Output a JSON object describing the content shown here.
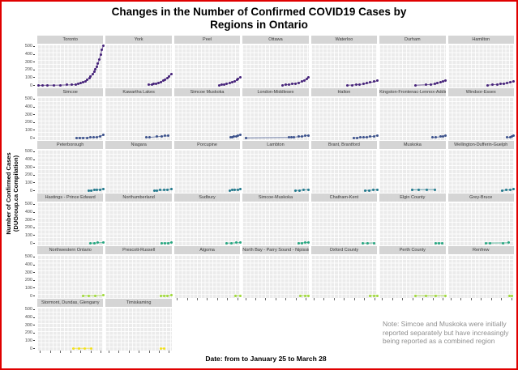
{
  "title": {
    "line1": "Changes in the Number of Confirmed COVID19 Cases by",
    "line2": "Regions in Ontario"
  },
  "y_axis": {
    "label_line1": "Number of Confirmed Cases",
    "label_line2": "(DUGroup.ca Compilation)",
    "ticks": [
      500,
      400,
      300,
      200,
      100,
      0
    ]
  },
  "x_axis": {
    "label": "Date: from to January 25 to March 28"
  },
  "note": {
    "text": "Note: Simcoe and Muskoka were initially reported separately but have increasingly being reported as a combined region",
    "color": "#8f8f8f"
  },
  "frame": {
    "border_color": "#e00000"
  },
  "chart_data": {
    "type": "scatter",
    "subtype": "faceted small multiples with connecting lines",
    "facet_layout": {
      "columns": 7,
      "rows": 6,
      "panel_count": 37
    },
    "ylim": [
      -25,
      525
    ],
    "y_major_ticks": [
      0,
      100,
      200,
      300,
      400,
      500
    ],
    "x_range": [
      "January 25",
      "March 28"
    ],
    "grid": "on",
    "row_colors": [
      "#46237a",
      "#3b518b",
      "#21788c",
      "#27a781",
      "#a0da39",
      "#f2e11c"
    ],
    "panels": [
      {
        "region": "Toronto",
        "points": [
          [
            0.02,
            1
          ],
          [
            0.08,
            2
          ],
          [
            0.15,
            3
          ],
          [
            0.25,
            4
          ],
          [
            0.35,
            5
          ],
          [
            0.45,
            7
          ],
          [
            0.52,
            9
          ],
          [
            0.58,
            14
          ],
          [
            0.62,
            20
          ],
          [
            0.66,
            28
          ],
          [
            0.7,
            38
          ],
          [
            0.73,
            55
          ],
          [
            0.76,
            70
          ],
          [
            0.79,
            95
          ],
          [
            0.81,
            115
          ],
          [
            0.84,
            145
          ],
          [
            0.86,
            175
          ],
          [
            0.88,
            205
          ],
          [
            0.9,
            240
          ],
          [
            0.92,
            285
          ],
          [
            0.94,
            335
          ],
          [
            0.96,
            400
          ],
          [
            0.98,
            460
          ],
          [
            1.0,
            510
          ]
        ]
      },
      {
        "region": "York",
        "points": [
          [
            0.65,
            8
          ],
          [
            0.7,
            12
          ],
          [
            0.73,
            18
          ],
          [
            0.76,
            25
          ],
          [
            0.8,
            35
          ],
          [
            0.84,
            45
          ],
          [
            0.87,
            60
          ],
          [
            0.9,
            75
          ],
          [
            0.93,
            95
          ],
          [
            0.96,
            115
          ],
          [
            1.0,
            145
          ]
        ]
      },
      {
        "region": "Peel",
        "points": [
          [
            0.68,
            5
          ],
          [
            0.72,
            10
          ],
          [
            0.76,
            15
          ],
          [
            0.8,
            22
          ],
          [
            0.84,
            30
          ],
          [
            0.88,
            40
          ],
          [
            0.92,
            55
          ],
          [
            0.95,
            70
          ],
          [
            0.97,
            85
          ],
          [
            1.0,
            110
          ]
        ]
      },
      {
        "region": "Ottawa",
        "points": [
          [
            0.6,
            5
          ],
          [
            0.65,
            8
          ],
          [
            0.7,
            12
          ],
          [
            0.75,
            18
          ],
          [
            0.8,
            25
          ],
          [
            0.85,
            35
          ],
          [
            0.9,
            50
          ],
          [
            0.94,
            65
          ],
          [
            0.97,
            80
          ],
          [
            1.0,
            100
          ]
        ]
      },
      {
        "region": "Waterloo",
        "points": [
          [
            0.55,
            3
          ],
          [
            0.62,
            6
          ],
          [
            0.68,
            10
          ],
          [
            0.74,
            14
          ],
          [
            0.8,
            20
          ],
          [
            0.85,
            28
          ],
          [
            0.9,
            38
          ],
          [
            0.95,
            48
          ],
          [
            1.0,
            60
          ]
        ]
      },
      {
        "region": "Durham",
        "points": [
          [
            0.55,
            3
          ],
          [
            0.7,
            8
          ],
          [
            0.78,
            14
          ],
          [
            0.84,
            20
          ],
          [
            0.88,
            28
          ],
          [
            0.92,
            38
          ],
          [
            0.96,
            50
          ],
          [
            1.0,
            65
          ]
        ]
      },
      {
        "region": "Hamilton",
        "points": [
          [
            0.6,
            5
          ],
          [
            0.68,
            10
          ],
          [
            0.75,
            15
          ],
          [
            0.8,
            20
          ],
          [
            0.85,
            25
          ],
          [
            0.9,
            32
          ],
          [
            0.95,
            42
          ],
          [
            1.0,
            55
          ]
        ]
      },
      {
        "region": "Simcoe",
        "points": [
          [
            0.6,
            4
          ],
          [
            0.65,
            5
          ],
          [
            0.7,
            5
          ],
          [
            0.75,
            6
          ],
          [
            0.8,
            8
          ],
          [
            0.85,
            10
          ],
          [
            0.9,
            14
          ],
          [
            0.95,
            22
          ],
          [
            1.0,
            38
          ]
        ]
      },
      {
        "region": "Kawartha Lakes",
        "points": [
          [
            0.62,
            8
          ],
          [
            0.67,
            10
          ],
          [
            0.78,
            18
          ],
          [
            0.85,
            25
          ],
          [
            0.9,
            28
          ],
          [
            0.95,
            28
          ]
        ]
      },
      {
        "region": "Simcoe Muskoka",
        "points": [
          [
            0.85,
            8
          ],
          [
            0.88,
            12
          ],
          [
            0.91,
            18
          ],
          [
            0.94,
            25
          ],
          [
            0.97,
            32
          ],
          [
            1.0,
            38
          ]
        ]
      },
      {
        "region": "London-Middlesex",
        "points": [
          [
            0.05,
            2
          ],
          [
            0.7,
            8
          ],
          [
            0.74,
            10
          ],
          [
            0.78,
            12
          ],
          [
            0.85,
            18
          ],
          [
            0.9,
            22
          ],
          [
            0.95,
            28
          ],
          [
            1.0,
            35
          ]
        ]
      },
      {
        "region": "Halton",
        "points": [
          [
            0.65,
            4
          ],
          [
            0.7,
            6
          ],
          [
            0.75,
            8
          ],
          [
            0.8,
            10
          ],
          [
            0.85,
            14
          ],
          [
            0.9,
            18
          ],
          [
            0.95,
            25
          ],
          [
            1.0,
            33
          ]
        ]
      },
      {
        "region": "Kingston-Frontenac-Lennox-Addington",
        "points": [
          [
            0.8,
            8
          ],
          [
            0.85,
            10
          ],
          [
            0.92,
            18
          ],
          [
            0.96,
            24
          ],
          [
            1.0,
            30
          ]
        ]
      },
      {
        "region": "Windsor-Essex",
        "points": [
          [
            0.9,
            8
          ],
          [
            0.94,
            14
          ],
          [
            0.97,
            22
          ],
          [
            1.0,
            30
          ]
        ]
      },
      {
        "region": "Peterborough",
        "points": [
          [
            0.78,
            5
          ],
          [
            0.82,
            6
          ],
          [
            0.86,
            8
          ],
          [
            0.9,
            10
          ],
          [
            0.95,
            16
          ],
          [
            1.0,
            24
          ]
        ]
      },
      {
        "region": "Niagara",
        "points": [
          [
            0.74,
            5
          ],
          [
            0.78,
            6
          ],
          [
            0.82,
            7
          ],
          [
            0.88,
            9
          ],
          [
            0.94,
            14
          ],
          [
            1.0,
            22
          ]
        ]
      },
      {
        "region": "Porcupine",
        "points": [
          [
            0.84,
            5
          ],
          [
            0.88,
            7
          ],
          [
            0.92,
            10
          ],
          [
            0.96,
            14
          ],
          [
            1.0,
            20
          ]
        ]
      },
      {
        "region": "Lambton",
        "points": [
          [
            0.8,
            4
          ],
          [
            0.86,
            6
          ],
          [
            0.93,
            10
          ],
          [
            1.0,
            16
          ]
        ]
      },
      {
        "region": "Brant, Brantford",
        "points": [
          [
            0.82,
            4
          ],
          [
            0.88,
            6
          ],
          [
            0.94,
            10
          ],
          [
            1.0,
            15
          ]
        ]
      },
      {
        "region": "Muskoka",
        "points": [
          [
            0.5,
            12
          ],
          [
            0.6,
            14
          ],
          [
            0.72,
            15
          ],
          [
            0.84,
            15
          ]
        ]
      },
      {
        "region": "Wellington-Dufferin-Guelph",
        "points": [
          [
            0.82,
            5
          ],
          [
            0.88,
            8
          ],
          [
            0.94,
            12
          ],
          [
            1.0,
            18
          ]
        ]
      },
      {
        "region": "Hastings - Prince Edward",
        "points": [
          [
            0.8,
            4
          ],
          [
            0.86,
            5
          ],
          [
            0.92,
            7
          ],
          [
            1.0,
            10
          ]
        ]
      },
      {
        "region": "Northumberland",
        "points": [
          [
            0.85,
            3
          ],
          [
            0.9,
            5
          ],
          [
            0.95,
            6
          ],
          [
            1.0,
            8
          ]
        ]
      },
      {
        "region": "Sudbury",
        "points": [
          [
            0.8,
            3
          ],
          [
            0.87,
            5
          ],
          [
            0.94,
            7
          ],
          [
            1.0,
            10
          ]
        ]
      },
      {
        "region": "Simcoe-Muskoka",
        "points": [
          [
            0.85,
            4
          ],
          [
            0.9,
            6
          ],
          [
            0.95,
            9
          ],
          [
            1.0,
            12
          ]
        ]
      },
      {
        "region": "Chatham-Kent",
        "points": [
          [
            0.78,
            3
          ],
          [
            0.86,
            4
          ],
          [
            0.95,
            6
          ]
        ]
      },
      {
        "region": "Elgin County",
        "points": [
          [
            0.85,
            4
          ],
          [
            0.9,
            5
          ],
          [
            0.95,
            5
          ]
        ]
      },
      {
        "region": "Grey-Bruce",
        "points": [
          [
            0.58,
            5
          ],
          [
            0.64,
            5
          ],
          [
            0.84,
            6
          ],
          [
            0.92,
            7
          ]
        ]
      },
      {
        "region": "Northwestern Ontario",
        "points": [
          [
            0.7,
            3
          ],
          [
            0.78,
            4
          ],
          [
            0.88,
            4
          ],
          [
            1.0,
            8
          ]
        ]
      },
      {
        "region": "Prescott-Russell",
        "points": [
          [
            0.84,
            3
          ],
          [
            0.89,
            4
          ],
          [
            0.94,
            5
          ],
          [
            1.0,
            7
          ]
        ]
      },
      {
        "region": "Algoma",
        "points": [
          [
            0.93,
            4
          ],
          [
            1.0,
            5
          ]
        ]
      },
      {
        "region": "North Bay - Parry Sound - Nipissing",
        "points": [
          [
            0.88,
            3
          ],
          [
            0.95,
            5
          ],
          [
            1.0,
            6
          ]
        ]
      },
      {
        "region": "Oxford County",
        "points": [
          [
            0.9,
            3
          ],
          [
            0.95,
            4
          ],
          [
            1.0,
            6
          ]
        ]
      },
      {
        "region": "Perth County",
        "points": [
          [
            0.55,
            3
          ],
          [
            0.7,
            3
          ],
          [
            0.85,
            4
          ],
          [
            1.0,
            5
          ]
        ]
      },
      {
        "region": "Renfrew",
        "points": [
          [
            0.93,
            4
          ],
          [
            0.97,
            4
          ]
        ]
      },
      {
        "region": "Stormont, Dundas, Glengarry",
        "points": [
          [
            0.55,
            3
          ],
          [
            0.63,
            4
          ],
          [
            0.72,
            4
          ],
          [
            0.82,
            5
          ]
        ]
      },
      {
        "region": "Timiskaming",
        "points": [
          [
            0.83,
            4
          ],
          [
            0.88,
            4
          ]
        ]
      }
    ]
  }
}
